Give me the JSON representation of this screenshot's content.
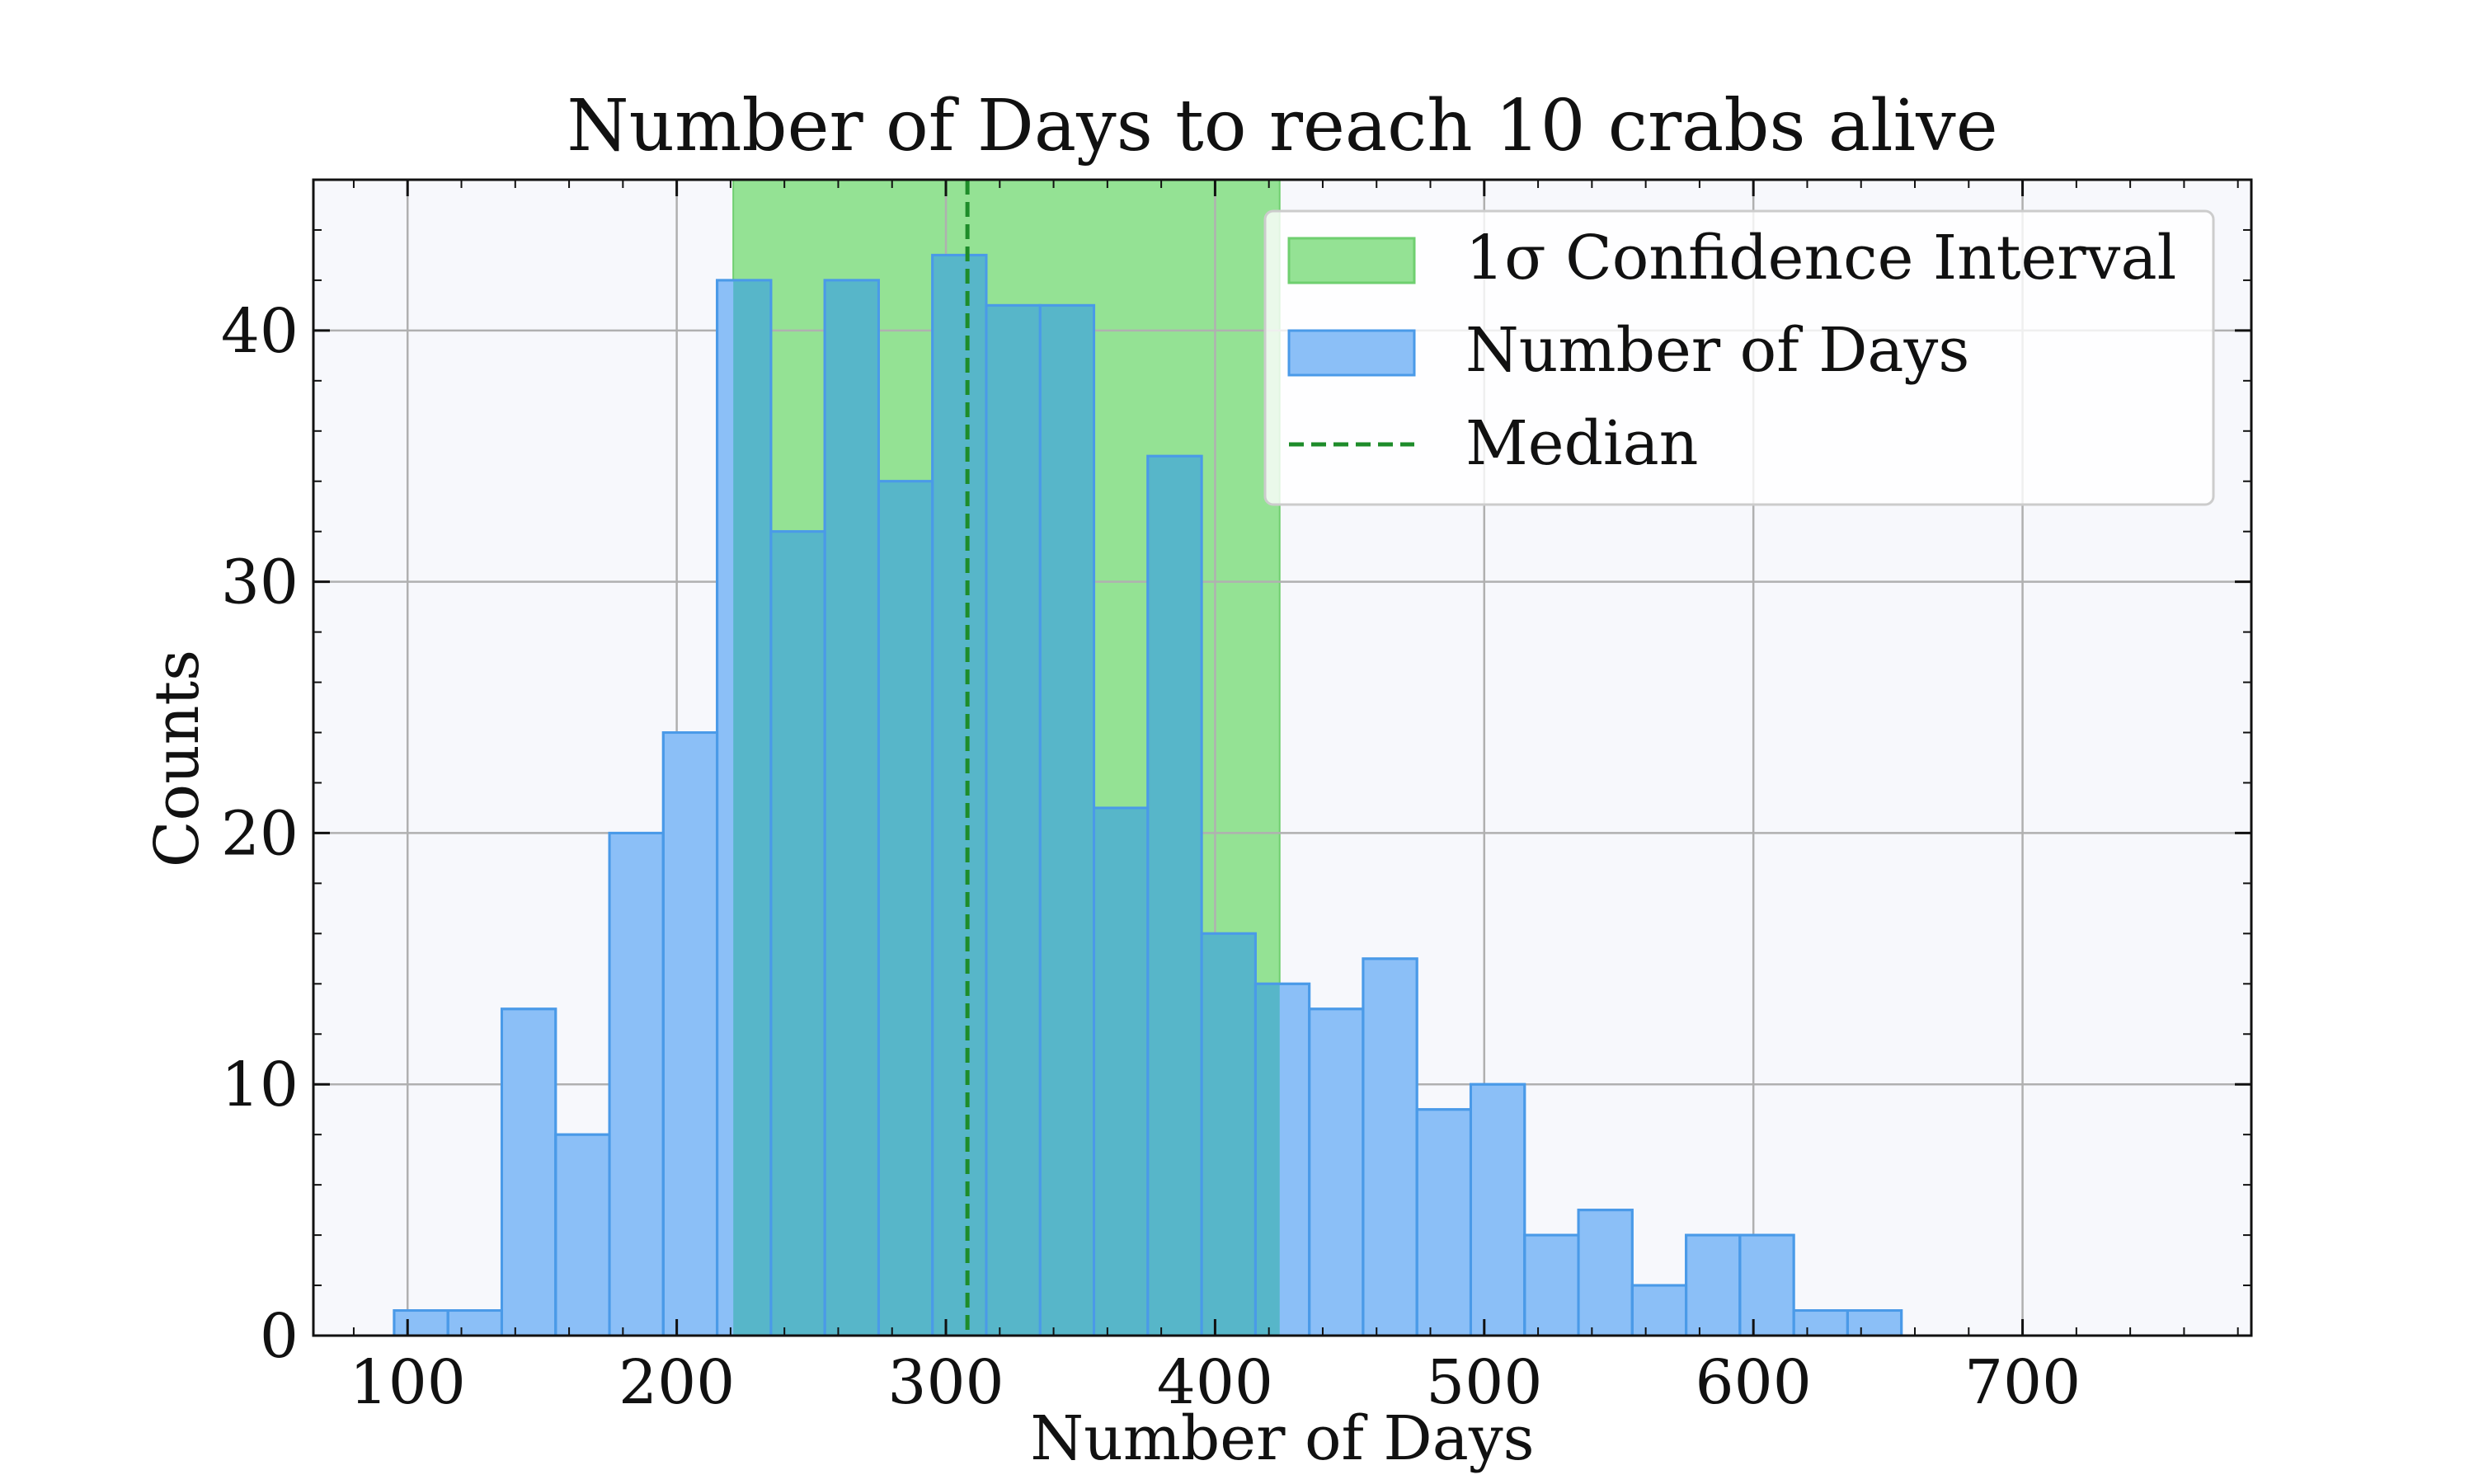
{
  "chart_data": {
    "type": "bar",
    "title": "Number of Days to reach 10 crabs alive",
    "xlabel": "Number of Days",
    "ylabel": "Counts",
    "xlim": [
      65,
      785
    ],
    "ylim": [
      0,
      46
    ],
    "xticks": [
      100,
      200,
      300,
      400,
      500,
      600,
      700
    ],
    "yticks": [
      0,
      10,
      20,
      30,
      40
    ],
    "grid": true,
    "legend_position": "upper right",
    "histogram": {
      "name": "Number of Days",
      "bin_edges": [
        95,
        115,
        135,
        155,
        175,
        195,
        215,
        235,
        255,
        275,
        295,
        315,
        335,
        355,
        375,
        395,
        415,
        435,
        455,
        475,
        495,
        515,
        535,
        555,
        575,
        595,
        615,
        635,
        655
      ],
      "counts": [
        1,
        1,
        13,
        8,
        20,
        24,
        42,
        32,
        42,
        34,
        43,
        41,
        41,
        21,
        35,
        16,
        14,
        13,
        15,
        9,
        10,
        4,
        5,
        2,
        4,
        4,
        1,
        1
      ]
    },
    "confidence_interval": {
      "name": "1σ Confidence Interval",
      "x_start": 221,
      "x_end": 424
    },
    "median": {
      "name": "Median",
      "x": 308
    },
    "colors": {
      "background": "#f7f8fc",
      "hist_fill": "#8bbff7",
      "hist_edge": "#4a9ae8",
      "band_fill": "#94e294",
      "band_edge": "#6fcf6f",
      "overlap_fill": "#57b6c9",
      "median_line": "#1e8c2a",
      "grid": "#b0b0b0"
    }
  }
}
